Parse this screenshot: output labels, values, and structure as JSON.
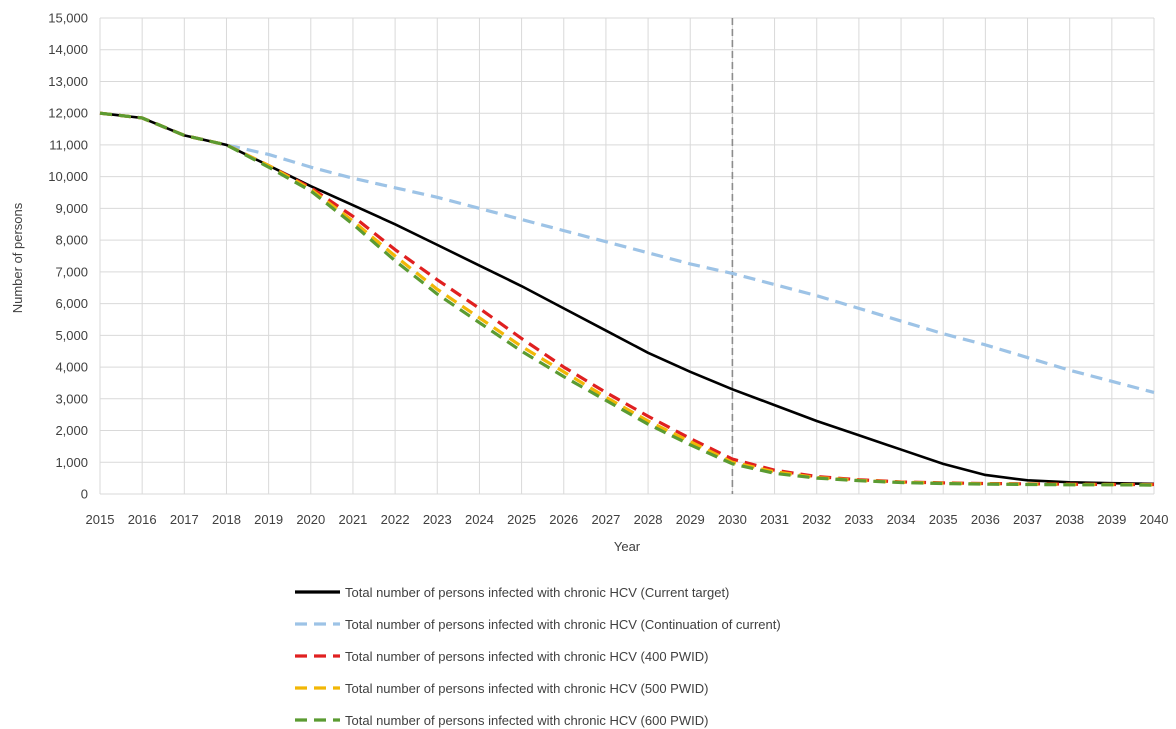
{
  "chart_data": {
    "type": "line",
    "title": "",
    "xlabel": "Year",
    "ylabel": "Number of persons",
    "xlim": [
      2015,
      2040
    ],
    "ylim": [
      0,
      15000
    ],
    "y_tick_step": 1000,
    "x_ticks": [
      "2015",
      "2016",
      "2017",
      "2018",
      "2019",
      "2020",
      "2021",
      "2022",
      "2023",
      "2024",
      "2025",
      "2026",
      "2027",
      "2028",
      "2029",
      "2030",
      "2031",
      "2032",
      "2033",
      "2034",
      "2035",
      "2036",
      "2037",
      "2038",
      "2039",
      "2040"
    ],
    "y_ticks": [
      "0",
      "1,000",
      "2,000",
      "3,000",
      "4,000",
      "5,000",
      "6,000",
      "7,000",
      "8,000",
      "9,000",
      "10,000",
      "11,000",
      "12,000",
      "13,000",
      "14,000",
      "15,000"
    ],
    "grid": true,
    "reference_line": {
      "x": 2030,
      "style": "dashed",
      "color": "#8c8c8c"
    },
    "legend_position": "bottom",
    "x": [
      2015,
      2016,
      2017,
      2018,
      2019,
      2020,
      2021,
      2022,
      2023,
      2024,
      2025,
      2026,
      2027,
      2028,
      2029,
      2030,
      2031,
      2032,
      2033,
      2034,
      2035,
      2036,
      2037,
      2038,
      2039,
      2040
    ],
    "series": [
      {
        "name": "Total number of persons infected with chronic HCV (Current target)",
        "color": "#000000",
        "dash": "solid",
        "values": [
          12000,
          11850,
          11300,
          11000,
          10350,
          9700,
          9100,
          8500,
          7850,
          7200,
          6550,
          5850,
          5150,
          4450,
          3850,
          3300,
          2800,
          2300,
          1850,
          1400,
          950,
          600,
          430,
          370,
          340,
          320
        ]
      },
      {
        "name": "Total number of persons infected with chronic HCV (Continuation of current)",
        "color": "#9dc3e6",
        "dash": "dashed",
        "values": [
          12000,
          11850,
          11300,
          11000,
          10700,
          10300,
          9950,
          9650,
          9350,
          9000,
          8650,
          8300,
          7950,
          7600,
          7250,
          6950,
          6600,
          6250,
          5850,
          5450,
          5050,
          4700,
          4300,
          3900,
          3550,
          3200
        ]
      },
      {
        "name": "Total number of persons infected with chronic HCV (400 PWID)",
        "color": "#e02020",
        "dash": "dashed",
        "values": [
          12000,
          11850,
          11300,
          11000,
          10350,
          9650,
          8750,
          7700,
          6750,
          5850,
          4900,
          4000,
          3200,
          2450,
          1750,
          1100,
          750,
          550,
          450,
          380,
          350,
          330,
          320,
          310,
          300,
          300
        ]
      },
      {
        "name": "Total number of persons infected with chronic HCV (500 PWID)",
        "color": "#f2b705",
        "dash": "dashed",
        "values": [
          12000,
          11850,
          11300,
          11000,
          10350,
          9600,
          8600,
          7500,
          6450,
          5550,
          4650,
          3850,
          3050,
          2300,
          1650,
          1000,
          700,
          520,
          430,
          370,
          340,
          320,
          310,
          300,
          300,
          290
        ]
      },
      {
        "name": "Total number of persons infected with chronic HCV (600 PWID)",
        "color": "#5b9b32",
        "dash": "dashed",
        "values": [
          12000,
          11850,
          11300,
          11000,
          10300,
          9550,
          8500,
          7350,
          6300,
          5400,
          4500,
          3700,
          2950,
          2200,
          1550,
          950,
          650,
          500,
          420,
          360,
          330,
          310,
          300,
          290,
          290,
          280
        ]
      }
    ]
  }
}
